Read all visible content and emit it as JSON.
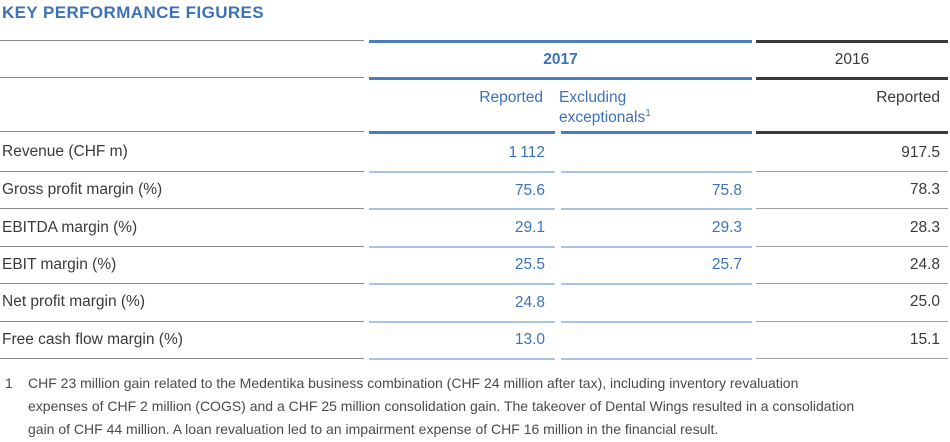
{
  "title": "KEY PERFORMANCE FIGURES",
  "colors": {
    "bg": "#ffffff",
    "blue_text": "#3d72b8",
    "blue_line": "#4a7cbd",
    "light_blue_line": "#a9c4e2",
    "dark_text": "#3a3a3a",
    "dark_line": "#3a3a3a",
    "gray_line": "#8a8a8a",
    "gray_line_light": "#9e9e9e",
    "footnote_text": "#4a4a4a"
  },
  "header": {
    "year_2017": "2017",
    "year_2016": "2016",
    "col_2017_reported": "Reported",
    "col_2017_excluding_line1": "Excluding",
    "col_2017_excluding_line2": "exceptionals",
    "col_2017_excluding_footnote_ref": "1",
    "col_2016_reported": "Reported"
  },
  "table": {
    "rows": [
      {
        "label": "Revenue (CHF m)",
        "reported_2017": "1 112",
        "excl_2017": "",
        "reported_2016": "917.5"
      },
      {
        "label": "Gross profit margin (%)",
        "reported_2017": "75.6",
        "excl_2017": "75.8",
        "reported_2016": "78.3"
      },
      {
        "label": "EBITDA margin (%)",
        "reported_2017": "29.1",
        "excl_2017": "29.3",
        "reported_2016": "28.3"
      },
      {
        "label": "EBIT margin (%)",
        "reported_2017": "25.5",
        "excl_2017": "25.7",
        "reported_2016": "24.8"
      },
      {
        "label": "Net profit margin (%)",
        "reported_2017": "24.8",
        "excl_2017": "",
        "reported_2016": "25.0"
      },
      {
        "label": "Free cash flow margin (%)",
        "reported_2017": "13.0",
        "excl_2017": "",
        "reported_2016": "15.1"
      }
    ]
  },
  "footnote": {
    "marker": "1",
    "lines": [
      "CHF 23 million gain related to the Medentika business combination (CHF 24 million after tax), including inventory revaluation",
      "expenses of CHF 2 million (COGS) and a CHF 25 million consolidation gain. The takeover of Dental Wings resulted in a consolidation",
      "gain of CHF 44 million. A loan revaluation led to an impairment expense of CHF 16 million in the financial result."
    ]
  }
}
